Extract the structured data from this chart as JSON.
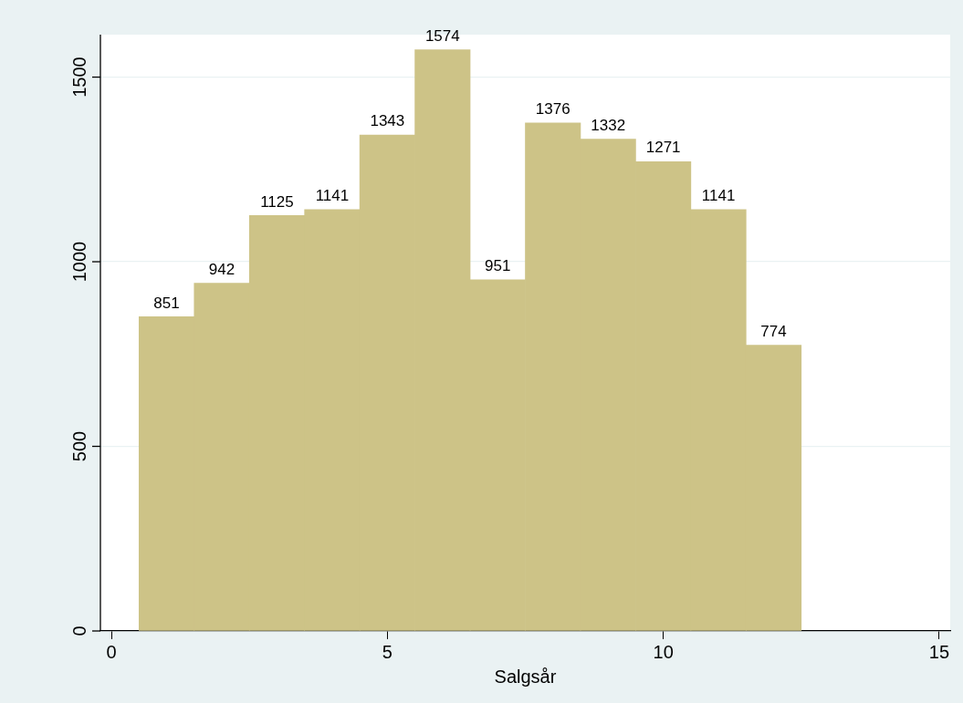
{
  "chart_data": {
    "type": "histogram",
    "xlabel": "Salgsår",
    "bins": [
      0.5,
      1.5,
      2.5,
      3.5,
      4.5,
      5.5,
      6.5,
      7.5,
      8.5,
      9.5,
      10.5,
      11.5,
      12.5
    ],
    "values": [
      851,
      942,
      1125,
      1141,
      1343,
      1574,
      951,
      1376,
      1332,
      1271,
      1141,
      774
    ],
    "color": "#cdc387",
    "xlim": [
      -0.2,
      15.2
    ],
    "xticks": [
      0,
      5,
      10,
      15
    ],
    "ylim": [
      0,
      1615
    ],
    "yticks": [
      0,
      500,
      1000,
      1500
    ],
    "grid": "y",
    "data_labels": true
  }
}
